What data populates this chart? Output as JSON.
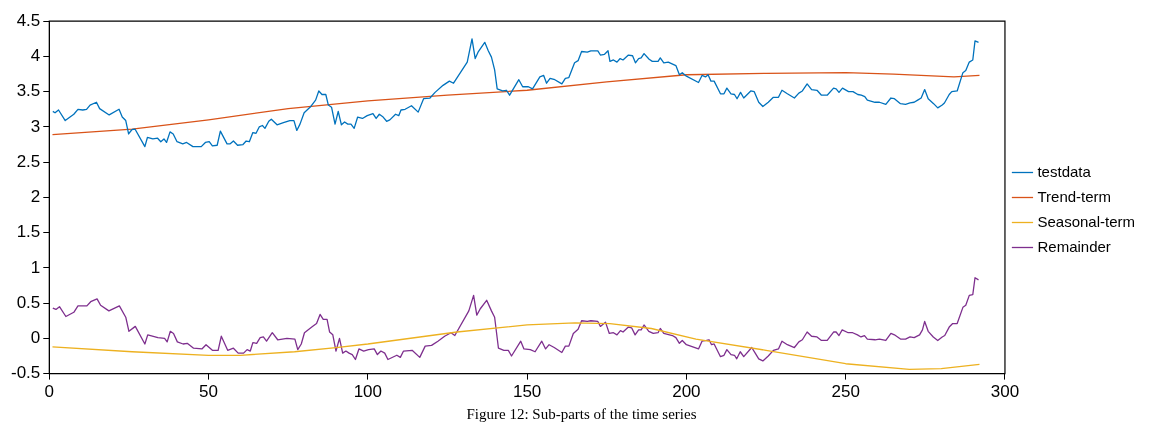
{
  "chart_data": {
    "type": "line",
    "annotations": [
      "Figure 12: Sub-parts of the time series"
    ],
    "xlim": [
      0,
      300
    ],
    "xticks": [
      0,
      50,
      100,
      150,
      200,
      250,
      300
    ],
    "ylim": [
      -0.5,
      4.5
    ],
    "yticks": [
      -0.5,
      0,
      0.5,
      1,
      1.5,
      2,
      2.5,
      3,
      3.5,
      4,
      4.5
    ],
    "grid": false,
    "legend": "right",
    "series": [
      {
        "name": "testdata",
        "color": "#0072bd",
        "x": [
          1.1,
          1.8,
          2.9,
          5,
          7.7,
          9,
          10.5,
          11.7,
          12.8,
          14.8,
          15.8,
          18.8,
          21.9,
          22.9,
          24,
          24.9,
          25.9,
          26.9,
          30,
          30.8,
          32.5,
          34,
          35,
          36,
          36.8,
          37.9,
          38.9,
          40.1,
          41.9,
          43.1,
          45.1,
          47.7,
          49,
          50.2,
          51.2,
          52.7,
          53.7,
          55.8,
          56.8,
          57.8,
          59.1,
          60.8,
          61.8,
          62.8,
          63.9,
          64.9,
          65.9,
          66.9,
          67.7,
          68.9,
          69.7,
          71.5,
          73.5,
          75.5,
          76.8,
          77.7,
          78.7,
          80,
          82.1,
          83.6,
          84.6,
          85.6,
          86.8,
          87.6,
          88.6,
          89.7,
          90.7,
          91.7,
          92.7,
          93.7,
          94.7,
          95.7,
          96.8,
          98.3,
          99.8,
          101.6,
          102.6,
          103.6,
          104.8,
          105.9,
          106.9,
          108.7,
          109.7,
          110.4,
          111.7,
          113.7,
          115.8,
          117.5,
          119.5,
          121.1,
          123.6,
          125.6,
          126.9,
          131.2,
          132.7,
          133.7,
          134.7,
          136.7,
          137.8,
          138.8,
          139.8,
          140.6,
          142.3,
          143.5,
          144.5,
          147.4,
          148.6,
          150.4,
          151.7,
          154,
          155.2,
          156.1,
          157.2,
          158.7,
          160.9,
          162,
          163.1,
          164.9,
          166,
          167.1,
          168.9,
          170,
          172.2,
          173,
          174.3,
          175.4,
          176,
          177.1,
          178.2,
          179.2,
          180.1,
          181.8,
          183.1,
          184,
          185,
          185.8,
          186.7,
          188.3,
          189.3,
          191.1,
          191.8,
          192.9,
          194.3,
          196.7,
          197.8,
          198.7,
          200,
          203.8,
          204.9,
          206,
          206.8,
          207.7,
          208.7,
          210.7,
          211.8,
          212.7,
          214,
          215.1,
          215.9,
          217,
          218,
          220.2,
          221.3,
          222.7,
          224,
          225.7,
          227.3,
          228.9,
          230,
          231.7,
          233.9,
          235.3,
          236.4,
          237.9,
          239.3,
          241,
          242.4,
          244.2,
          246.2,
          247,
          247.9,
          249,
          250.9,
          252.3,
          253.8,
          254.9,
          256,
          256.8,
          259.2,
          260.6,
          262.6,
          264.2,
          265.3,
          267.2,
          268.8,
          270.2,
          271.5,
          272.6,
          273.7,
          274.8,
          275.9,
          277.6,
          278.9,
          280.3,
          281,
          282.5,
          283.3,
          285,
          286.8,
          287.7,
          288.8,
          289.9,
          290.6,
          291.7
        ],
        "values": [
          3.22,
          3.2,
          3.24,
          3.09,
          3.18,
          3.25,
          3.24,
          3.25,
          3.31,
          3.35,
          3.26,
          3.17,
          3.25,
          3.14,
          3.09,
          2.9,
          2.96,
          2.97,
          2.72,
          2.85,
          2.83,
          2.84,
          2.79,
          2.83,
          2.78,
          2.93,
          2.9,
          2.79,
          2.76,
          2.78,
          2.72,
          2.72,
          2.78,
          2.79,
          2.73,
          2.74,
          2.94,
          2.76,
          2.76,
          2.8,
          2.74,
          2.75,
          2.8,
          2.79,
          2.92,
          2.91,
          3,
          3.02,
          2.98,
          3.08,
          3.11,
          3.03,
          3.06,
          3.09,
          3.09,
          2.95,
          3.04,
          3.2,
          3.29,
          3.38,
          3.51,
          3.46,
          3.46,
          3.31,
          3.28,
          3.04,
          3.22,
          3.03,
          3.07,
          3.04,
          3.04,
          2.98,
          3.14,
          3.12,
          3.16,
          3.19,
          3.12,
          3.18,
          3.14,
          3.08,
          3.1,
          3.18,
          3.16,
          3.24,
          3.25,
          3.3,
          3.21,
          3.4,
          3.41,
          3.49,
          3.59,
          3.65,
          3.62,
          3.92,
          4.25,
          3.97,
          4.07,
          4.2,
          4.08,
          3.99,
          3.81,
          3.54,
          3.51,
          3.52,
          3.45,
          3.67,
          3.57,
          3.57,
          3.54,
          3.71,
          3.73,
          3.62,
          3.69,
          3.67,
          3.61,
          3.69,
          3.7,
          3.91,
          3.94,
          4.07,
          4.06,
          4.08,
          4.08,
          4.02,
          4.03,
          4.08,
          3.93,
          3.95,
          3.92,
          3.97,
          3.95,
          4.02,
          4.01,
          3.91,
          3.97,
          3.98,
          4.04,
          3.96,
          3.93,
          3.93,
          3.98,
          3.91,
          3.92,
          3.87,
          3.74,
          3.77,
          3.72,
          3.63,
          3.73,
          3.71,
          3.74,
          3.65,
          3.65,
          3.47,
          3.47,
          3.55,
          3.47,
          3.46,
          3.4,
          3.49,
          3.41,
          3.51,
          3.5,
          3.35,
          3.29,
          3.35,
          3.42,
          3.42,
          3.52,
          3.47,
          3.41,
          3.48,
          3.51,
          3.61,
          3.53,
          3.52,
          3.45,
          3.45,
          3.55,
          3.54,
          3.49,
          3.55,
          3.5,
          3.5,
          3.46,
          3.45,
          3.43,
          3.38,
          3.35,
          3.35,
          3.32,
          3.41,
          3.4,
          3.33,
          3.32,
          3.34,
          3.35,
          3.38,
          3.41,
          3.53,
          3.4,
          3.33,
          3.27,
          3.31,
          3.34,
          3.46,
          3.5,
          3.51,
          3.77,
          3.8,
          3.92,
          3.95,
          4.22,
          4.2
        ]
      },
      {
        "name": "Trend-term",
        "color": "#d95319",
        "x": [
          1,
          26,
          50,
          75,
          100,
          125,
          150,
          175,
          200,
          225,
          250,
          265,
          284,
          292
        ],
        "values": [
          2.89,
          2.97,
          3.1,
          3.26,
          3.37,
          3.45,
          3.52,
          3.64,
          3.74,
          3.76,
          3.77,
          3.75,
          3.71,
          3.73
        ]
      },
      {
        "name": "Seasonal-term",
        "color": "#edb120",
        "x": [
          1,
          26,
          50,
          60,
          77,
          90,
          100,
          128,
          150,
          165,
          176,
          189,
          203,
          225,
          250,
          270,
          280,
          292
        ],
        "values": [
          -0.12,
          -0.19,
          -0.24,
          -0.24,
          -0.19,
          -0.13,
          -0.08,
          0.09,
          0.19,
          0.22,
          0.21,
          0.14,
          -0.01,
          -0.17,
          -0.36,
          -0.44,
          -0.43,
          -0.37
        ]
      },
      {
        "name": "Remainder",
        "color": "#7e2f8e",
        "x": [
          1.1,
          2.1,
          3.2,
          5.2,
          7.7,
          9,
          11.8,
          13,
          15,
          16.1,
          18.7,
          22,
          24,
          25,
          27,
          30,
          30.9,
          34.1,
          36.2,
          37,
          38,
          39,
          40.2,
          42,
          43.3,
          45.3,
          47.9,
          49.2,
          51.2,
          53,
          54,
          56,
          57.8,
          59.3,
          61,
          62.1,
          63.1,
          63.9,
          65.1,
          66.2,
          67.2,
          68.2,
          70,
          71.7,
          74.6,
          77.1,
          78,
          79.1,
          80.1,
          82.4,
          83.9,
          85,
          86,
          87.2,
          88,
          89,
          90,
          91.1,
          92.1,
          93.1,
          94.1,
          95.1,
          96.1,
          97.2,
          98.7,
          100.2,
          102,
          103,
          104.1,
          105.3,
          106.3,
          109.1,
          110.2,
          111.2,
          113.9,
          116.3,
          118,
          120,
          122,
          124.1,
          126.1,
          127.3,
          131.7,
          133.2,
          134.2,
          135.3,
          137.3,
          138.8,
          139.8,
          141,
          142.7,
          144.1,
          145.1,
          148,
          149,
          151,
          152.5,
          154.6,
          155.8,
          156.9,
          158.5,
          160.9,
          162,
          163.1,
          164.5,
          166,
          167.1,
          168.9,
          170,
          172.2,
          173,
          174.6,
          175.8,
          177.1,
          178.2,
          179.3,
          180.1,
          181.8,
          182.8,
          183.9,
          185,
          185.8,
          186.7,
          188.2,
          189.6,
          191.1,
          191.8,
          192.9,
          195.6,
          196.7,
          197.8,
          198.7,
          200,
          203.8,
          204.9,
          206.3,
          207.1,
          207.9,
          208.7,
          210.7,
          211.8,
          212.7,
          214,
          215.1,
          215.8,
          216.9,
          218,
          220.5,
          221.6,
          222.7,
          224,
          225.7,
          227.3,
          228.9,
          230,
          231.7,
          233.9,
          235.3,
          236.4,
          237.9,
          239.3,
          241,
          242.4,
          244.2,
          246.2,
          247,
          247.9,
          248.9,
          250.8,
          252.2,
          253.7,
          254.8,
          255.9,
          256.8,
          259.2,
          260.6,
          262.6,
          264.2,
          265.3,
          267.2,
          268.8,
          270.2,
          271.5,
          273.2,
          274.1,
          274.8,
          275.9,
          277.5,
          278.9,
          280.3,
          281.1,
          282.5,
          283.6,
          285,
          286.8,
          287.7,
          288.8,
          289.9,
          290.6,
          291.7
        ],
        "values": [
          0.43,
          0.41,
          0.45,
          0.31,
          0.37,
          0.46,
          0.46,
          0.52,
          0.56,
          0.47,
          0.39,
          0.46,
          0.3,
          0.1,
          0.17,
          -0.08,
          0.05,
          0.01,
          0,
          -0.05,
          0.1,
          0.07,
          -0.05,
          -0.08,
          -0.07,
          -0.14,
          -0.15,
          -0.09,
          -0.17,
          -0.17,
          0.03,
          -0.17,
          -0.14,
          -0.21,
          -0.21,
          -0.16,
          -0.18,
          -0.06,
          -0.07,
          0.01,
          0.02,
          -0.04,
          0.08,
          -0.02,
          0,
          -0.01,
          -0.16,
          -0.08,
          0.08,
          0.16,
          0.21,
          0.34,
          0.27,
          0.27,
          0.09,
          0.05,
          -0.18,
          0,
          -0.21,
          -0.18,
          -0.21,
          -0.23,
          -0.3,
          -0.15,
          -0.18,
          -0.16,
          -0.15,
          -0.23,
          -0.18,
          -0.21,
          -0.3,
          -0.24,
          -0.27,
          -0.18,
          -0.17,
          -0.27,
          -0.11,
          -0.1,
          -0.04,
          0.03,
          0.08,
          0.04,
          0.39,
          0.61,
          0.33,
          0.42,
          0.54,
          0.39,
          0.3,
          -0.14,
          -0.17,
          -0.17,
          -0.25,
          -0.04,
          -0.15,
          -0.16,
          -0.19,
          -0.04,
          -0.15,
          -0.09,
          -0.13,
          -0.2,
          -0.11,
          -0.11,
          0.07,
          0.13,
          0.25,
          0.24,
          0.25,
          0.24,
          0.17,
          0.23,
          0.07,
          0.08,
          0.05,
          0.11,
          0.09,
          0.16,
          0.15,
          0.05,
          0.12,
          0.12,
          0.19,
          0.1,
          0.07,
          0.08,
          0.14,
          0.07,
          0.04,
          0.01,
          -0.07,
          -0.03,
          -0.09,
          -0.15,
          -0.04,
          -0.03,
          -0.02,
          -0.09,
          -0.08,
          -0.26,
          -0.24,
          -0.16,
          -0.23,
          -0.24,
          -0.29,
          -0.19,
          -0.26,
          -0.13,
          -0.21,
          -0.29,
          -0.32,
          -0.25,
          -0.17,
          -0.15,
          -0.04,
          -0.09,
          -0.13,
          -0.05,
          -0.02,
          0.09,
          0.03,
          0.02,
          -0.03,
          -0.03,
          0.09,
          0.09,
          0.04,
          0.12,
          0.08,
          0.08,
          0.05,
          0.02,
          0.04,
          -0.01,
          -0.02,
          -0.01,
          -0.03,
          0.07,
          0.05,
          -0.01,
          -0.01,
          0.02,
          0.01,
          0.05,
          0.12,
          0.24,
          0.1,
          0.02,
          -0.03,
          0.02,
          0.04,
          0.16,
          0.21,
          0.21,
          0.44,
          0.47,
          0.61,
          0.62,
          0.86,
          0.83
        ]
      }
    ]
  }
}
